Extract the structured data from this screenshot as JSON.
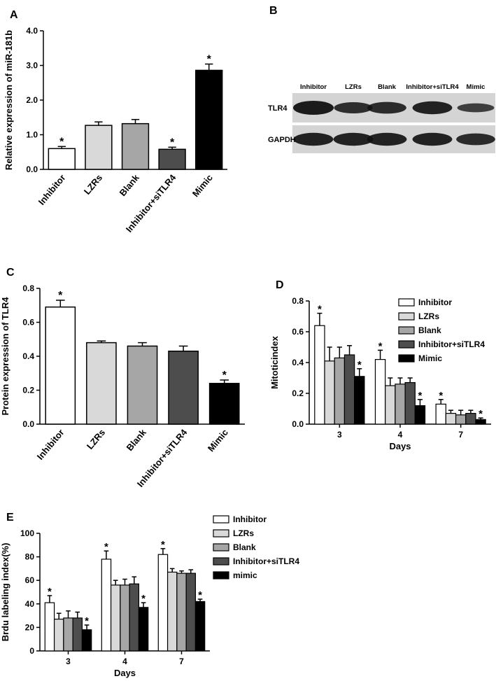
{
  "chart_data": [
    {
      "type": "bar",
      "panel": "A",
      "ylabel": "Relative expression of miR-181b",
      "categories": [
        "Inhibitor",
        "LZRs",
        "Blank",
        "Inhibitor+siTLR4",
        "Mimic"
      ],
      "values": [
        0.6,
        1.27,
        1.32,
        0.58,
        2.86
      ],
      "errors": [
        0.06,
        0.1,
        0.12,
        0.06,
        0.18
      ],
      "annotations": [
        "*",
        null,
        null,
        "*",
        "*"
      ],
      "colors": [
        "#ffffff",
        "#d9d9d9",
        "#a6a6a6",
        "#4d4d4d",
        "#000000"
      ],
      "ylim": [
        0,
        4
      ],
      "yticks": [
        {
          "value": 0,
          "label": "0.0"
        },
        {
          "value": 1,
          "label": "1.0"
        },
        {
          "value": 2,
          "label": "2.0"
        },
        {
          "value": 3,
          "label": "3.0"
        },
        {
          "value": 4,
          "label": "4.0"
        }
      ]
    },
    {
      "type": "bar",
      "panel": "C",
      "ylabel": "Protein expression of TLR4",
      "categories": [
        "Inhibitor",
        "LZRs",
        "Blank",
        "Inhibitor+siTLR4",
        "Mimic"
      ],
      "values": [
        0.69,
        0.48,
        0.46,
        0.43,
        0.24
      ],
      "errors": [
        0.04,
        0.01,
        0.02,
        0.03,
        0.02
      ],
      "annotations": [
        "*",
        null,
        null,
        null,
        "*"
      ],
      "colors": [
        "#ffffff",
        "#d9d9d9",
        "#a6a6a6",
        "#4d4d4d",
        "#000000"
      ],
      "ylim": [
        0,
        0.8
      ],
      "yticks": [
        {
          "value": 0,
          "label": "0.0"
        },
        0.2,
        0.4,
        0.6,
        0.8
      ]
    },
    {
      "type": "grouped_bar",
      "panel": "D",
      "ylabel": "Mitoticindex",
      "xlabel": "Days",
      "legend": "top-right",
      "categories": [
        "3",
        "4",
        "7"
      ],
      "series": [
        {
          "name": "Inhibitor",
          "color": "#ffffff",
          "values": [
            0.64,
            0.42,
            0.13
          ],
          "errors": [
            0.08,
            0.06,
            0.03
          ],
          "annotations": [
            "*",
            "*",
            "*"
          ]
        },
        {
          "name": "LZRs",
          "color": "#d9d9d9",
          "values": [
            0.41,
            0.25,
            0.07
          ],
          "errors": [
            0.09,
            0.05,
            0.02
          ],
          "annotations": [
            null,
            null,
            null
          ]
        },
        {
          "name": "Blank",
          "color": "#a6a6a6",
          "values": [
            0.43,
            0.26,
            0.06
          ],
          "errors": [
            0.07,
            0.04,
            0.03
          ],
          "annotations": [
            null,
            null,
            null
          ]
        },
        {
          "name": "Inhibitor+siTLR4",
          "color": "#4d4d4d",
          "values": [
            0.45,
            0.27,
            0.07
          ],
          "errors": [
            0.06,
            0.03,
            0.02
          ],
          "annotations": [
            null,
            null,
            null
          ]
        },
        {
          "name": "Mimic",
          "color": "#000000",
          "values": [
            0.31,
            0.12,
            0.03
          ],
          "errors": [
            0.05,
            0.04,
            0.01
          ],
          "annotations": [
            "*",
            "*",
            "*"
          ]
        }
      ],
      "ylim": [
        0,
        0.8
      ],
      "yticks": [
        {
          "value": 0,
          "label": "0.0"
        },
        0.2,
        0.4,
        0.6,
        0.8
      ]
    },
    {
      "type": "grouped_bar",
      "panel": "E",
      "ylabel": "Brdu labeling index(%)",
      "xlabel": "Days",
      "legend": "right",
      "categories": [
        "3",
        "4",
        "7"
      ],
      "series": [
        {
          "name": "Inhibitor",
          "color": "#ffffff",
          "values": [
            41,
            78,
            82
          ],
          "errors": [
            6,
            7,
            5
          ],
          "annotations": [
            "*",
            "*",
            "*"
          ]
        },
        {
          "name": "LZRs",
          "color": "#d9d9d9",
          "values": [
            27,
            56,
            67
          ],
          "errors": [
            5,
            4,
            3
          ],
          "annotations": [
            null,
            null,
            null
          ]
        },
        {
          "name": "Blank",
          "color": "#a6a6a6",
          "values": [
            28,
            56,
            66
          ],
          "errors": [
            6,
            5,
            2
          ],
          "annotations": [
            null,
            null,
            null
          ]
        },
        {
          "name": "Inhibitor+siTLR4",
          "color": "#4d4d4d",
          "values": [
            28,
            57,
            66
          ],
          "errors": [
            5,
            6,
            3
          ],
          "annotations": [
            null,
            null,
            null
          ]
        },
        {
          "name": "mimic",
          "color": "#000000",
          "values": [
            18,
            37,
            42
          ],
          "errors": [
            4,
            4,
            2
          ],
          "annotations": [
            "*",
            "*",
            "*"
          ]
        }
      ],
      "ylim": [
        0,
        100
      ],
      "yticks": [
        0,
        20,
        40,
        60,
        80,
        100
      ]
    }
  ],
  "blot": {
    "panel": "B",
    "lanes": [
      "Inhibitor",
      "LZRs",
      "Blank",
      "Inhibitor+siTLR4",
      "Mimic"
    ],
    "rows": [
      "TLR4",
      "GAPDH"
    ]
  }
}
